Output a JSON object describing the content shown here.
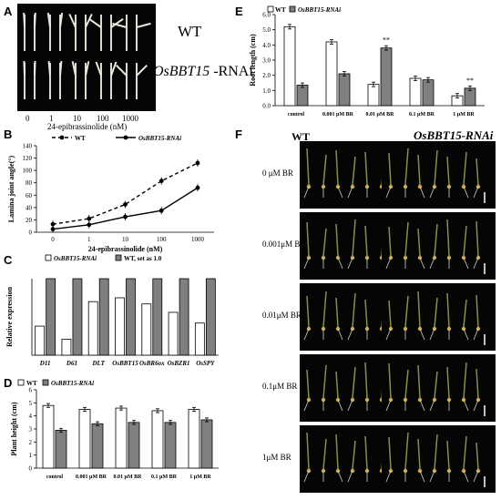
{
  "panel_labels": {
    "A": "A",
    "B": "B",
    "C": "C",
    "D": "D",
    "E": "E",
    "F": "F"
  },
  "panelA": {
    "row_labels": [
      "WT",
      "OsBBT15-RNAi"
    ],
    "conc_ticks": [
      "0",
      "1",
      "10",
      "100",
      "1000"
    ],
    "axis_label": "24-epibrassinolide (nM)"
  },
  "panelF": {
    "col_headers": [
      "WT",
      "OsBBT15-RNAi"
    ],
    "row_labels": [
      "0 μM BR",
      "0.001μM BR",
      "0.01μM BR",
      "0.1μM BR",
      "1μM BR"
    ]
  },
  "colors": {
    "white_bar": "#ffffff",
    "grey_bar": "#7f7f7f",
    "photo_bg": "#050505",
    "plant": "#8a8f45"
  },
  "chart_data": [
    {
      "id": "B",
      "type": "line",
      "x_ticks": [
        "0",
        "1",
        "10",
        "100",
        "1000"
      ],
      "ylabel": "Lamina joint angle(°)",
      "xlabel": "24-epibrassinolide (nM)",
      "ylim": [
        0,
        140
      ],
      "y_ticks": [
        0,
        20,
        40,
        60,
        80,
        100,
        120,
        140
      ],
      "series": [
        {
          "name": "WT",
          "style": "dashed",
          "values": [
            13,
            22,
            45,
            83,
            112
          ]
        },
        {
          "name": "OsBBT15-RNAi",
          "style": "solid",
          "values": [
            5,
            12,
            25,
            35,
            72
          ]
        }
      ]
    },
    {
      "id": "C",
      "type": "bar",
      "categories": [
        "D11",
        "D61",
        "DLT",
        "OsBBT15",
        "OsBR6ox",
        "OsBZR1",
        "OsSPY"
      ],
      "ylabel": "Relative expression",
      "ylim": [
        0,
        1
      ],
      "series": [
        {
          "name": "OsBBT15-RNAi",
          "values": [
            0.38,
            0.21,
            0.7,
            0.75,
            0.67,
            0.56,
            0.42
          ]
        },
        {
          "name": "WT, set as 1.0",
          "values": [
            1,
            1,
            1,
            1,
            1,
            1,
            1
          ]
        }
      ]
    },
    {
      "id": "D",
      "type": "bar",
      "categories": [
        "control",
        "0.001 μM BR",
        "0.01 μM BR",
        "0.1 μM BR",
        "1 μM BR"
      ],
      "ylabel": "Plant height (cm)",
      "ylim": [
        0,
        6
      ],
      "y_ticks": [
        0,
        1,
        2,
        3,
        4,
        5,
        6
      ],
      "series": [
        {
          "name": "WT",
          "values": [
            4.8,
            4.5,
            4.6,
            4.4,
            4.5
          ]
        },
        {
          "name": "OsBBT15-RNAi",
          "values": [
            2.9,
            3.4,
            3.5,
            3.5,
            3.7
          ]
        }
      ]
    },
    {
      "id": "E",
      "type": "bar",
      "categories": [
        "control",
        "0.001 μM BR",
        "0.01 μM BR",
        "0.1 μM BR",
        "1 μM BR"
      ],
      "ylabel": "Root length (cm)",
      "ylim": [
        0,
        6
      ],
      "y_ticks": [
        "0.0",
        "1.0",
        "2.0",
        "3.0",
        "4.0",
        "5.0",
        "6.0"
      ],
      "series": [
        {
          "name": "WT",
          "values": [
            5.2,
            4.2,
            1.4,
            1.8,
            0.65
          ]
        },
        {
          "name": "OsBBT15-RNAi",
          "values": [
            1.35,
            2.1,
            3.8,
            1.7,
            1.15
          ]
        }
      ],
      "annotations": [
        {
          "category": "0.01 μM BR",
          "text": "**"
        },
        {
          "category": "1 μM BR",
          "text": "**"
        }
      ]
    }
  ]
}
